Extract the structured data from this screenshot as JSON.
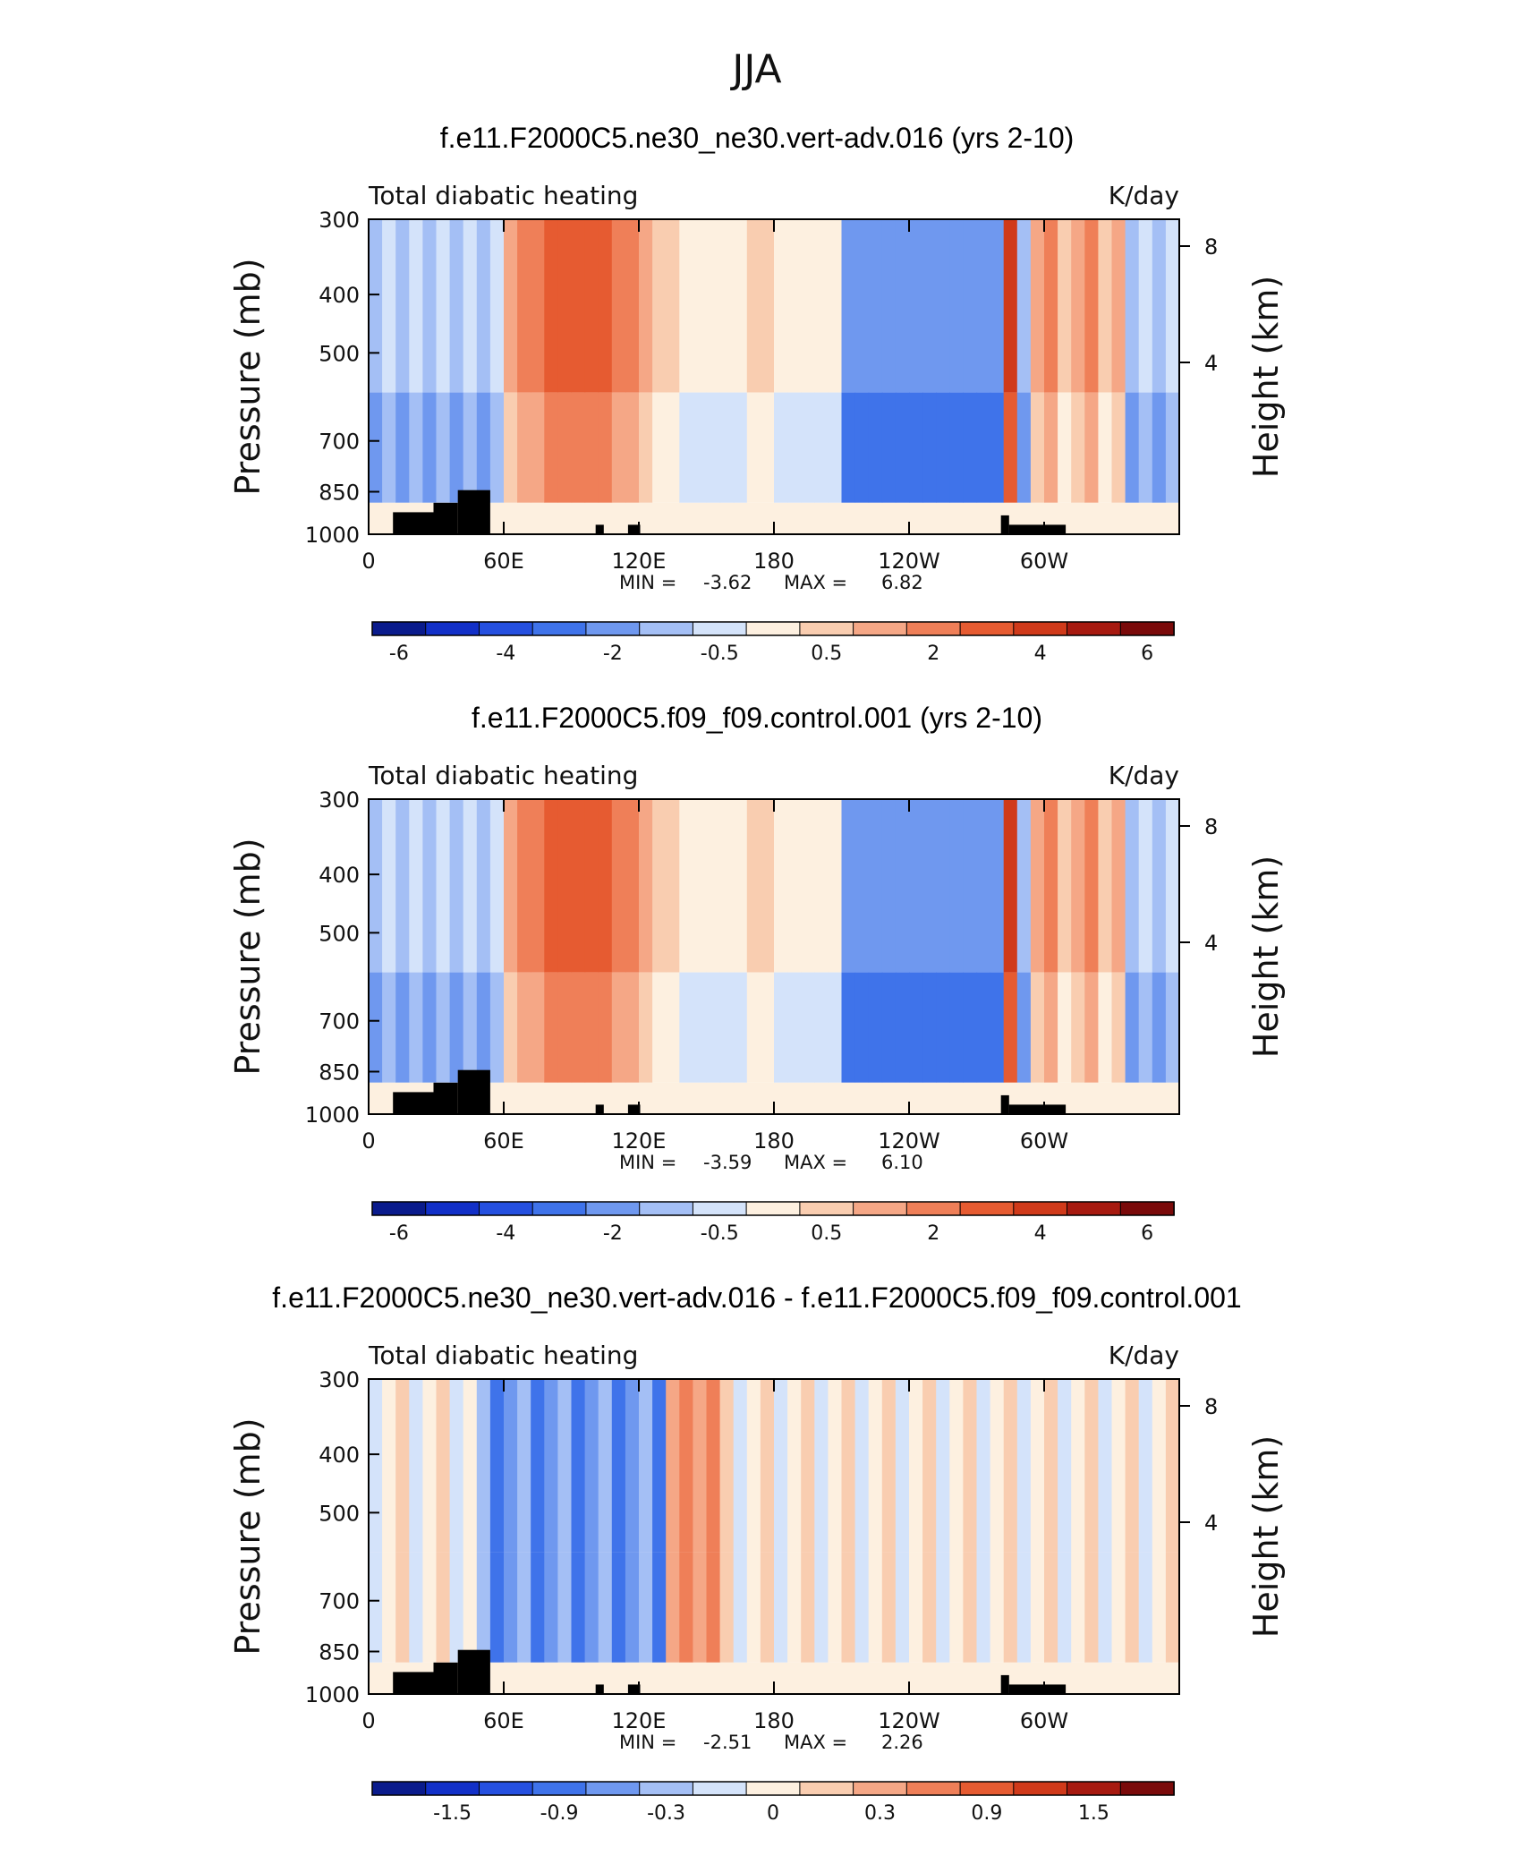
{
  "figure_title": "JJA",
  "chart_data": [
    {
      "type": "heatmap",
      "title": "f.e11.F2000C5.ne30_ne30.vert-adv.016 (yrs 2-10)",
      "left_subtitle": "Total diabatic heating",
      "right_subtitle": "K/day",
      "xlabel": "",
      "ylabel": "Pressure (mb)",
      "y2label": "Height (km)",
      "x_ticks": [
        "0",
        "60E",
        "120E",
        "180",
        "120W",
        "60W"
      ],
      "y_ticks": [
        "300",
        "400",
        "500",
        "700",
        "850",
        "1000"
      ],
      "y2_ticks": [
        "8",
        "4"
      ],
      "ylim": [
        1000,
        300
      ],
      "min_label": "MIN =",
      "min_value": "-3.62",
      "max_label": "MAX =",
      "max_value": "6.82",
      "colorbar_labels": [
        "-6",
        "-4",
        "-2",
        "-0.5",
        "0.5",
        "2",
        "4",
        "6"
      ],
      "colorbar_colors": [
        "#0a1b8c",
        "#1230c8",
        "#2550e0",
        "#3f73ea",
        "#6f98ef",
        "#a4bff5",
        "#d4e3fa",
        "#fdf0e0",
        "#f9cdb0",
        "#f5a786",
        "#ef7f58",
        "#e65b31",
        "#d03a1a",
        "#a71a10",
        "#7a0a0a"
      ]
    },
    {
      "type": "heatmap",
      "title": "f.e11.F2000C5.f09_f09.control.001 (yrs 2-10)",
      "left_subtitle": "Total diabatic heating",
      "right_subtitle": "K/day",
      "xlabel": "",
      "ylabel": "Pressure (mb)",
      "y2label": "Height (km)",
      "x_ticks": [
        "0",
        "60E",
        "120E",
        "180",
        "120W",
        "60W"
      ],
      "y_ticks": [
        "300",
        "400",
        "500",
        "700",
        "850",
        "1000"
      ],
      "y2_ticks": [
        "8",
        "4"
      ],
      "ylim": [
        1000,
        300
      ],
      "min_label": "MIN =",
      "min_value": "-3.59",
      "max_label": "MAX =",
      "max_value": "6.10",
      "colorbar_labels": [
        "-6",
        "-4",
        "-2",
        "-0.5",
        "0.5",
        "2",
        "4",
        "6"
      ],
      "colorbar_colors": [
        "#0a1b8c",
        "#1230c8",
        "#2550e0",
        "#3f73ea",
        "#6f98ef",
        "#a4bff5",
        "#d4e3fa",
        "#fdf0e0",
        "#f9cdb0",
        "#f5a786",
        "#ef7f58",
        "#e65b31",
        "#d03a1a",
        "#a71a10",
        "#7a0a0a"
      ]
    },
    {
      "type": "heatmap",
      "title": "f.e11.F2000C5.ne30_ne30.vert-adv.016 - f.e11.F2000C5.f09_f09.control.001",
      "left_subtitle": "Total diabatic heating",
      "right_subtitle": "K/day",
      "xlabel": "",
      "ylabel": "Pressure (mb)",
      "y2label": "Height (km)",
      "x_ticks": [
        "0",
        "60E",
        "120E",
        "180",
        "120W",
        "60W"
      ],
      "y_ticks": [
        "300",
        "400",
        "500",
        "700",
        "850",
        "1000"
      ],
      "y2_ticks": [
        "8",
        "4"
      ],
      "ylim": [
        1000,
        300
      ],
      "min_label": "MIN =",
      "min_value": "-2.51",
      "max_label": "MAX =",
      "max_value": "2.26",
      "colorbar_labels": [
        "-1.5",
        "-0.9",
        "-0.3",
        "0",
        "0.3",
        "0.9",
        "1.5"
      ],
      "colorbar_colors": [
        "#0a1b8c",
        "#1230c8",
        "#2550e0",
        "#3f73ea",
        "#6f98ef",
        "#a4bff5",
        "#d4e3fa",
        "#fdf0e0",
        "#f9cdb0",
        "#f5a786",
        "#ef7f58",
        "#e65b31",
        "#d03a1a",
        "#a71a10",
        "#7a0a0a"
      ]
    }
  ]
}
